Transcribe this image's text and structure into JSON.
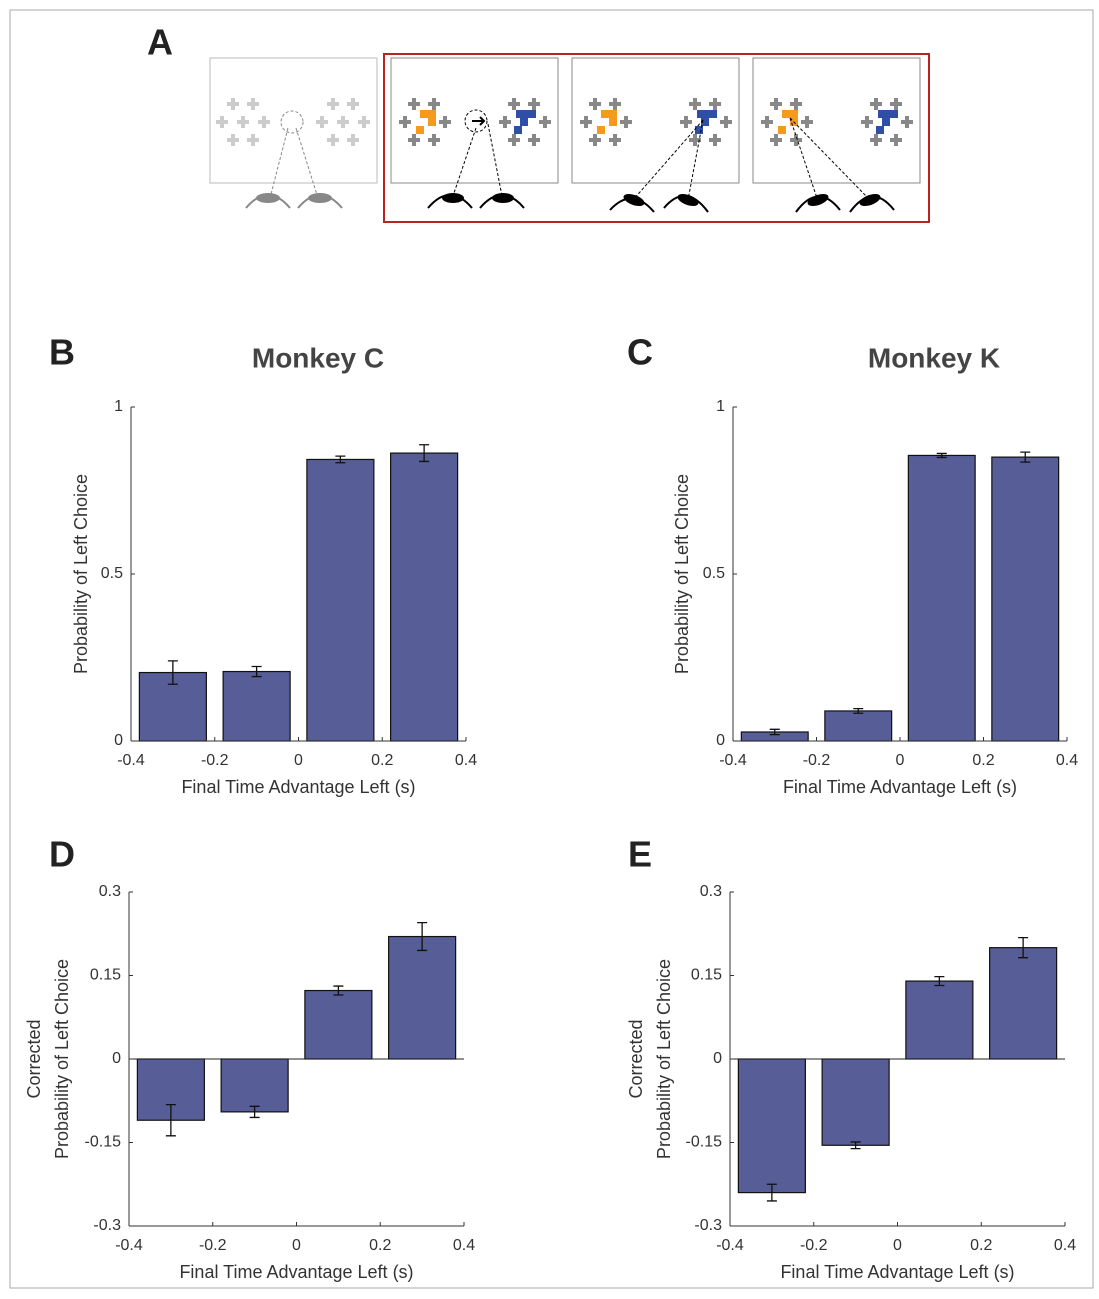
{
  "panel_a_label": "A",
  "chart_data": [
    {
      "type": "bar",
      "panel": "B",
      "title": "Monkey C",
      "ylabel": [
        "Probability of Left Choice"
      ],
      "xlabel": "Final Time Advantage Left (s)",
      "x": [
        -0.3,
        -0.1,
        0.1,
        0.3
      ],
      "values": [
        0.205,
        0.208,
        0.843,
        0.862
      ],
      "errors": [
        0.035,
        0.015,
        0.01,
        0.025
      ],
      "color": "#575d96",
      "xlim": [
        -0.4,
        0.4
      ],
      "xticks": [
        -0.4,
        -0.2,
        0,
        0.2,
        0.4
      ],
      "ylim": [
        0,
        1
      ],
      "yticks": [
        0,
        0.5,
        1
      ]
    },
    {
      "type": "bar",
      "panel": "C",
      "title": "Monkey K",
      "ylabel": [
        "Probability of Left Choice"
      ],
      "xlabel": "Final Time Advantage Left (s)",
      "x": [
        -0.3,
        -0.1,
        0.1,
        0.3
      ],
      "values": [
        0.027,
        0.09,
        0.855,
        0.85
      ],
      "errors": [
        0.008,
        0.007,
        0.006,
        0.015
      ],
      "color": "#575d96",
      "xlim": [
        -0.4,
        0.4
      ],
      "xticks": [
        -0.4,
        -0.2,
        0,
        0.2,
        0.4
      ],
      "ylim": [
        0,
        1
      ],
      "yticks": [
        0,
        0.5,
        1
      ]
    },
    {
      "type": "bar",
      "panel": "D",
      "ylabel": [
        "Corrected",
        "Probability of Left Choice"
      ],
      "xlabel": "Final Time Advantage Left (s)",
      "x": [
        -0.3,
        -0.1,
        0.1,
        0.3
      ],
      "values": [
        -0.11,
        -0.095,
        0.123,
        0.22
      ],
      "errors": [
        0.028,
        0.01,
        0.008,
        0.025
      ],
      "color": "#575d96",
      "xlim": [
        -0.4,
        0.4
      ],
      "xticks": [
        -0.4,
        -0.2,
        0,
        0.2,
        0.4
      ],
      "ylim": [
        -0.3,
        0.3
      ],
      "yticks": [
        -0.3,
        -0.15,
        0,
        0.15,
        0.3
      ]
    },
    {
      "type": "bar",
      "panel": "E",
      "ylabel": [
        "Corrected",
        "Probability of Left Choice"
      ],
      "xlabel": "Final Time Advantage Left (s)",
      "x": [
        -0.3,
        -0.1,
        0.1,
        0.3
      ],
      "values": [
        -0.24,
        -0.155,
        0.14,
        0.2
      ],
      "errors": [
        0.015,
        0.006,
        0.008,
        0.018
      ],
      "color": "#575d96",
      "xlim": [
        -0.4,
        0.4
      ],
      "xticks": [
        -0.4,
        -0.2,
        0,
        0.2,
        0.4
      ],
      "ylim": [
        -0.3,
        0.3
      ],
      "yticks": [
        -0.3,
        -0.15,
        0,
        0.15,
        0.3
      ]
    }
  ]
}
